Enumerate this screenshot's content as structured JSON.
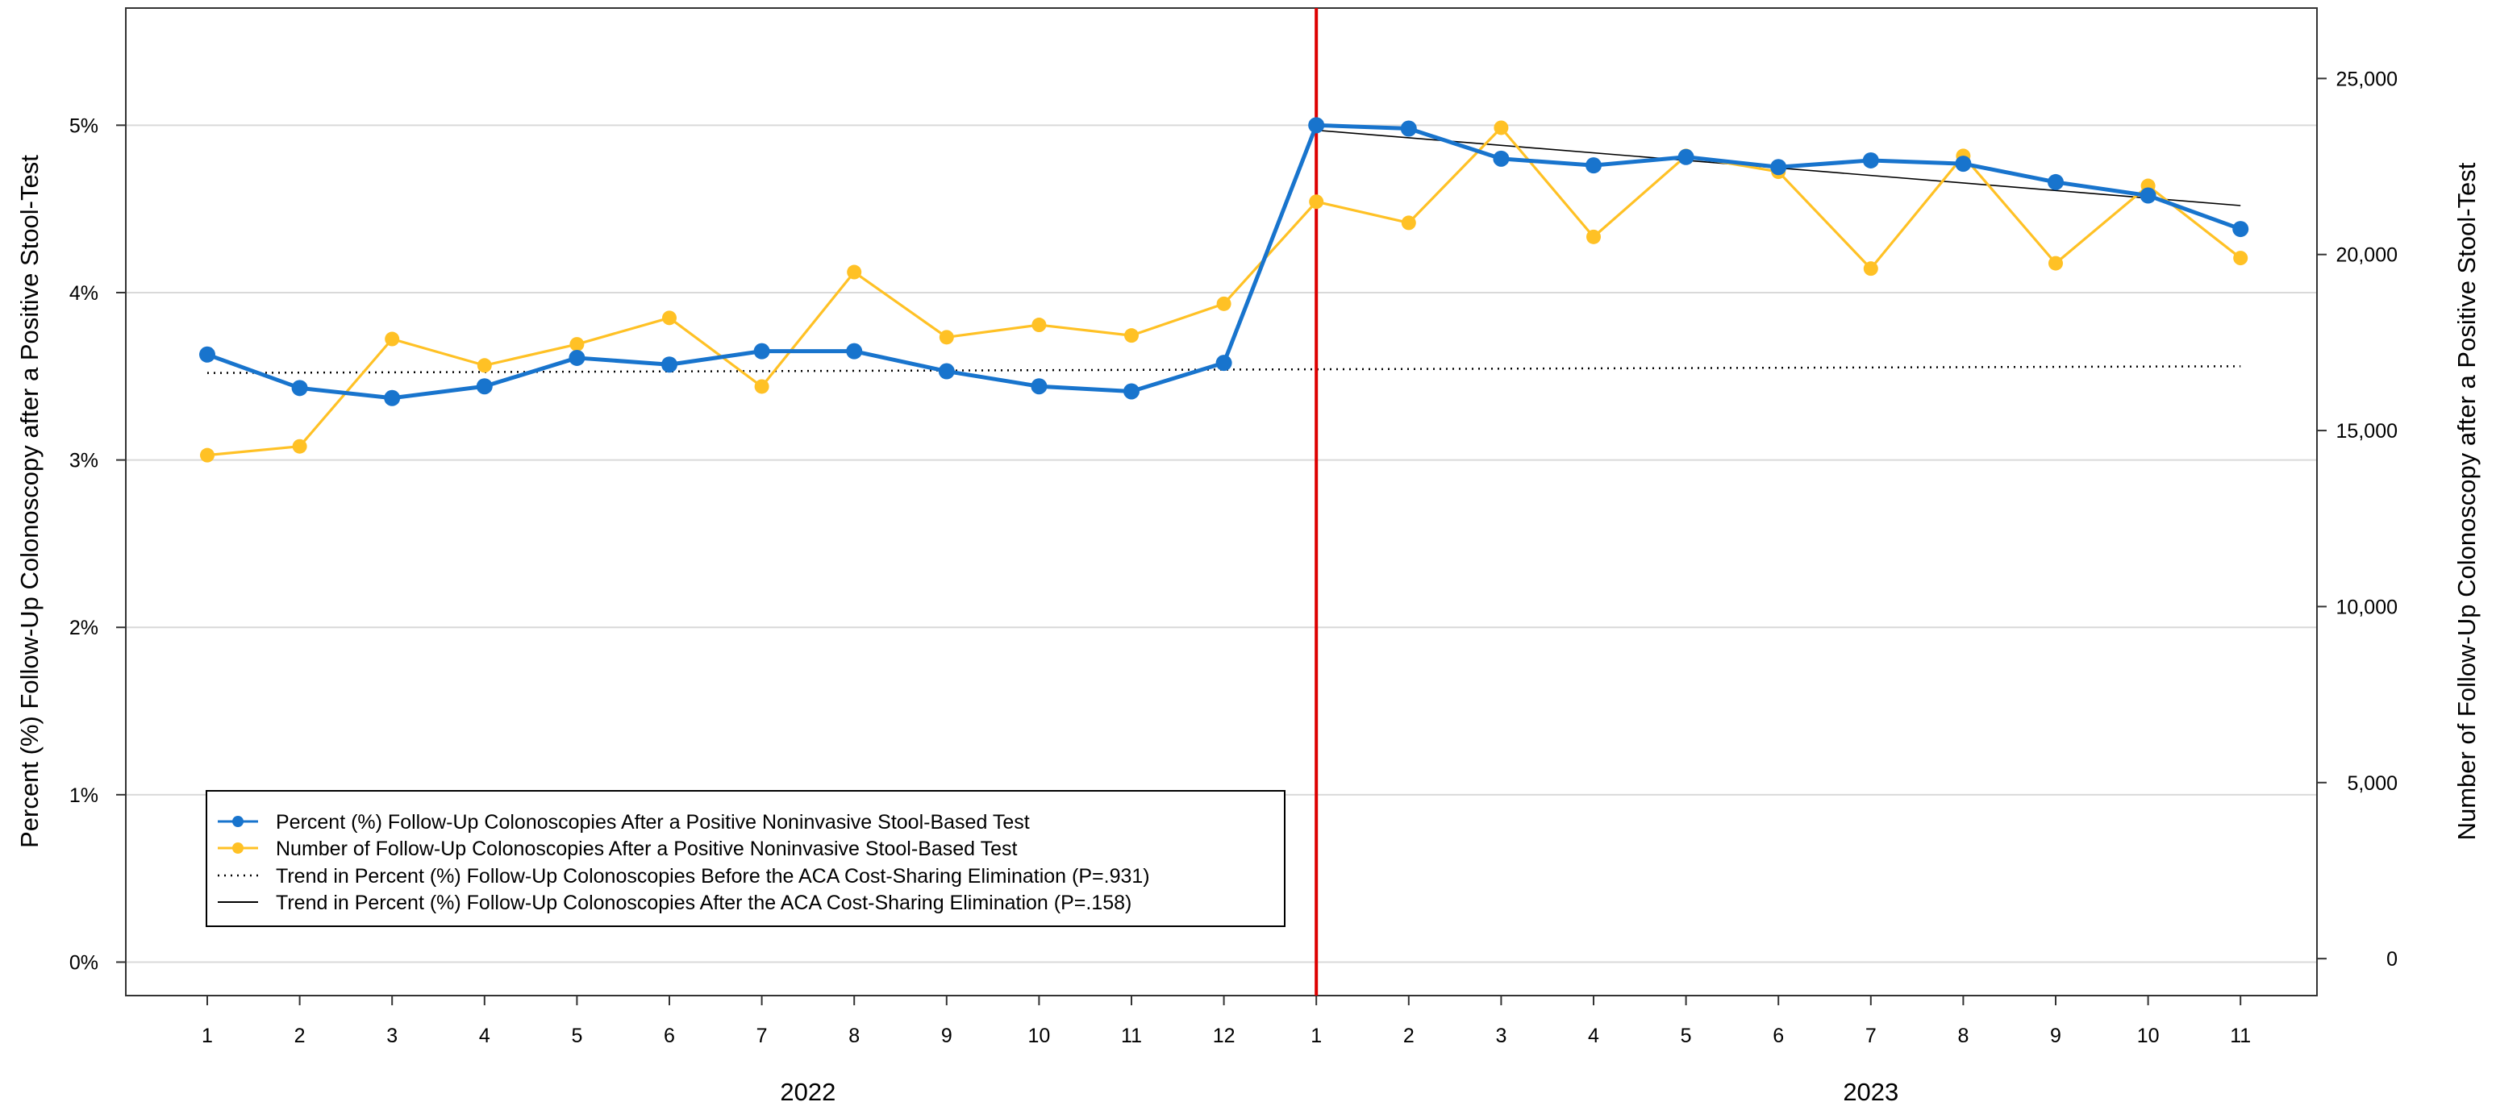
{
  "chart_data": {
    "type": "line",
    "y_left_label": "Percent (%) Follow-Up Colonoscopy after a Positive Stool-Test",
    "y_right_label": "Number of Follow-Up Colonoscopy after a Positive Stool-Test",
    "y_left_ticks": [
      "0%",
      "1%",
      "2%",
      "3%",
      "4%",
      "5%"
    ],
    "y_right_ticks": [
      "0",
      "5,000",
      "10,000",
      "15,000",
      "20,000",
      "25,000"
    ],
    "y_left_range": [
      -0.2,
      5.7
    ],
    "y_right_range": [
      -1050,
      27000
    ],
    "x_tick_labels": [
      "1",
      "2",
      "3",
      "4",
      "5",
      "6",
      "7",
      "8",
      "9",
      "10",
      "11",
      "12",
      "1",
      "2",
      "3",
      "4",
      "5",
      "6",
      "7",
      "8",
      "9",
      "10",
      "11"
    ],
    "year_labels": [
      {
        "label": "2022",
        "center_index": 6.5
      },
      {
        "label": "2023",
        "center_index": 18
      }
    ],
    "intervention_index": 12,
    "gridlines": "horizontal",
    "legend_position": "bottom-left",
    "colors": {
      "percent": "#1874CD",
      "number": "#FFC125",
      "intervention": "#DD0000",
      "trend": "#000000",
      "grid": "#D9D9D9"
    },
    "series": [
      {
        "name": "Percent (%) Follow-Up Colonoscopies After a Positive Noninvasive Stool-Based Test",
        "axis": "left",
        "values": [
          3.63,
          3.43,
          3.37,
          3.44,
          3.61,
          3.57,
          3.65,
          3.65,
          3.53,
          3.44,
          3.41,
          3.58,
          5.0,
          4.98,
          4.8,
          4.76,
          4.81,
          4.75,
          4.79,
          4.77,
          4.66,
          4.58,
          4.38
        ]
      },
      {
        "name": "Number of Follow-Up Colonoscopies After a Positive Noninvasive Stool-Based Test",
        "axis": "right",
        "values": [
          14300,
          14550,
          17600,
          16850,
          17450,
          18200,
          16250,
          19500,
          17650,
          18000,
          17700,
          18600,
          21500,
          20900,
          23600,
          20500,
          22800,
          22350,
          19600,
          22800,
          19750,
          21950,
          19900
        ]
      }
    ],
    "trend_lines": [
      {
        "name": "Trend in Percent (%) Follow-Up Colonoscopies Before the ACA Cost-Sharing Elimination (P=.931)",
        "style": "dotted",
        "from": {
          "index": 0,
          "value": 3.52
        },
        "to": {
          "index": 22,
          "value": 3.56
        }
      },
      {
        "name": "Trend in Percent (%) Follow-Up Colonoscopies After the ACA Cost-Sharing Elimination (P=.158)",
        "style": "solid",
        "from": {
          "index": 12,
          "value": 4.97
        },
        "to": {
          "index": 22,
          "value": 4.52
        }
      }
    ]
  }
}
